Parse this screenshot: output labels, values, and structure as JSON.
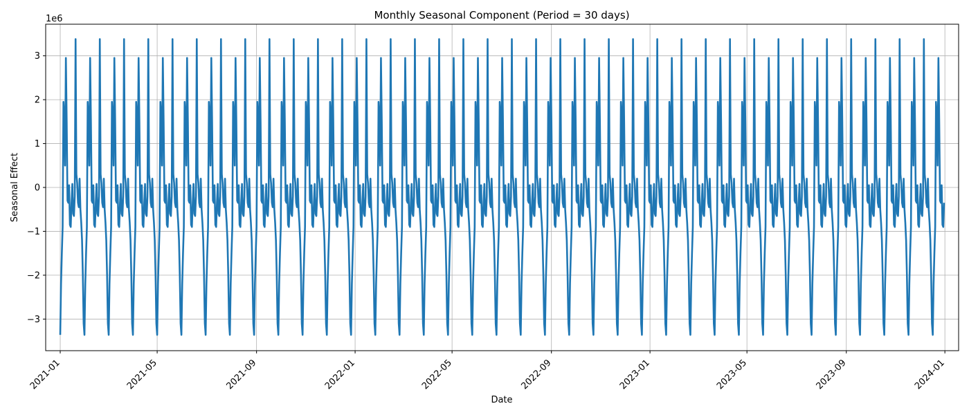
{
  "chart_data": {
    "type": "line",
    "title": "Monthly Seasonal Component (Period = 30 days)",
    "xlabel": "Date",
    "ylabel": "Seasonal Effect",
    "y_scale_label": "1e6",
    "x_range": [
      "2020-12-14",
      "2024-01-18"
    ],
    "ylim": [
      -3.72,
      3.72
    ],
    "y_ticks": [
      -3,
      -2,
      -1,
      0,
      1,
      2,
      3
    ],
    "y_tick_labels": [
      "−3",
      "−2",
      "−1",
      "0",
      "1",
      "2",
      "3"
    ],
    "x_ticks": [
      "2021-01-01",
      "2021-05-01",
      "2021-09-01",
      "2022-01-01",
      "2022-05-01",
      "2022-09-01",
      "2023-01-01",
      "2023-05-01",
      "2023-09-01",
      "2024-01-01"
    ],
    "x_tick_labels": [
      "2021-01",
      "2021-05",
      "2021-09",
      "2022-01",
      "2022-05",
      "2022-09",
      "2023-01",
      "2023-05",
      "2023-09",
      "2024-01"
    ],
    "grid": true,
    "series": [
      {
        "color": "#1f77b4",
        "x_start": "2021-01-01",
        "x_end": "2023-12-31",
        "period_days": 30,
        "values_per_period": [
          -3.36,
          -2.2,
          -1.5,
          -0.9,
          1.95,
          1.6,
          0.5,
          2.95,
          1.5,
          -0.3,
          -0.35,
          0.05,
          -0.85,
          -0.9,
          -0.35,
          0.08,
          -0.6,
          -0.65,
          -0.2,
          3.38,
          0.3,
          0.1,
          -0.35,
          -0.45,
          0.2,
          -0.5,
          -0.8,
          -1.2,
          -2.0,
          -3.1
        ]
      }
    ]
  }
}
